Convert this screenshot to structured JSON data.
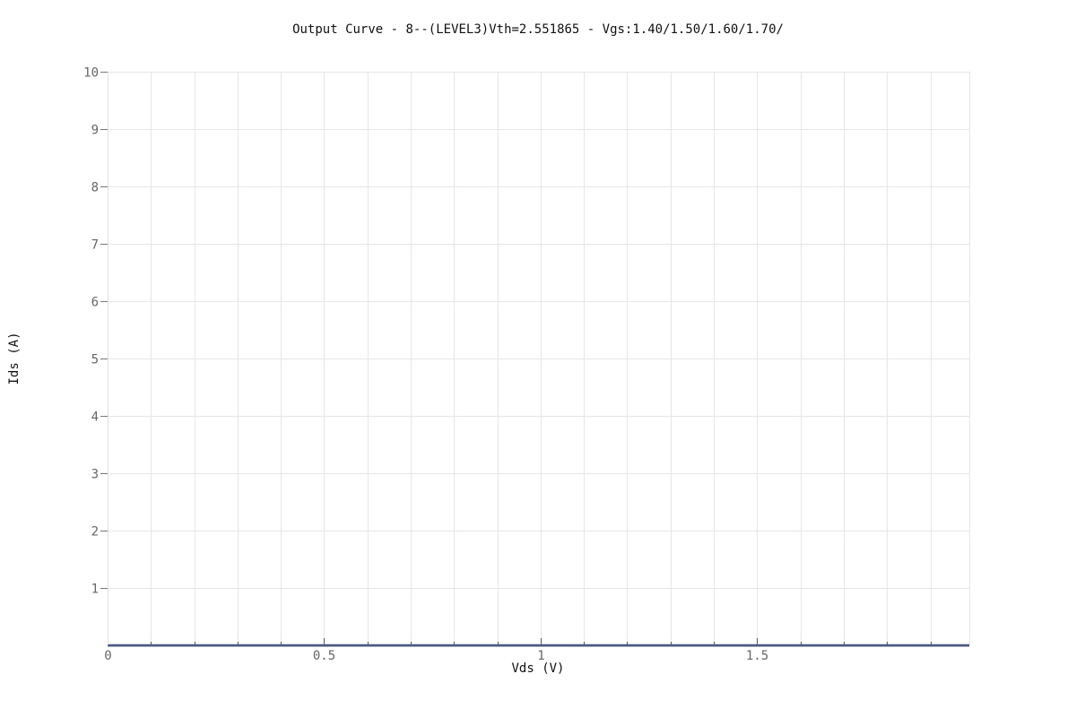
{
  "chart_data": {
    "type": "line",
    "title": "Output Curve - 8--(LEVEL3)Vth=2.551865 - Vgs:1.40/1.50/1.60/1.70/",
    "xlabel": "Vds (V)",
    "ylabel": "Ids (A)",
    "xlim": [
      0,
      1.99
    ],
    "ylim": [
      0,
      10
    ],
    "x_ticks": [
      0,
      0.5,
      1,
      1.5
    ],
    "x_tick_labels": [
      "0",
      "0.5",
      "1",
      "1.5"
    ],
    "x_minor_ticks": [
      0.1,
      0.2,
      0.3,
      0.4,
      0.6,
      0.7,
      0.8,
      0.9,
      1.1,
      1.2,
      1.3,
      1.4,
      1.6,
      1.7,
      1.8,
      1.9
    ],
    "y_ticks": [
      1,
      2,
      3,
      4,
      5,
      6,
      7,
      8,
      9,
      10
    ],
    "y_tick_labels": [
      "1",
      "2",
      "3",
      "4",
      "5",
      "6",
      "7",
      "8",
      "9",
      "10"
    ],
    "grid": true,
    "legend": "none",
    "colors": {
      "grid": "#e6e6e6",
      "axis": "#4a5a80",
      "series": "#4a5a80"
    },
    "series": [
      {
        "x": [
          0,
          0.25,
          0.5,
          0.75,
          1,
          1.25,
          1.5,
          1.75,
          1.99
        ],
        "values": [
          0,
          0,
          0,
          0,
          0,
          0,
          0,
          0,
          0
        ]
      }
    ]
  }
}
